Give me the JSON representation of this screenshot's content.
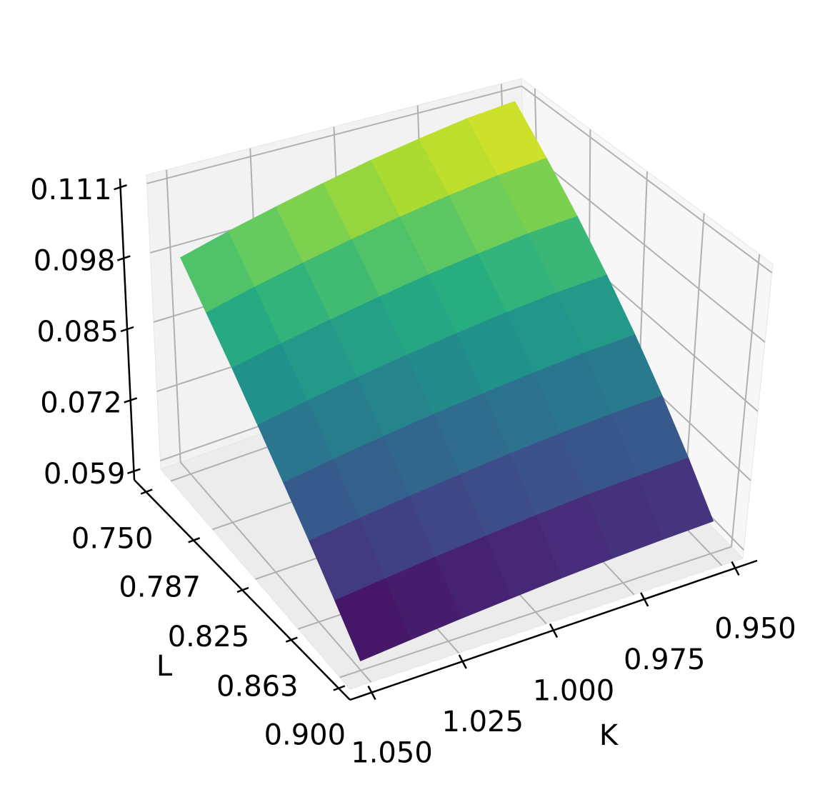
{
  "chart_data": {
    "type": "surface",
    "x_label": "K",
    "y_label": "L",
    "x": [
      0.95,
      0.9643,
      0.9786,
      0.9929,
      1.0071,
      1.0214,
      1.0357,
      1.05
    ],
    "y": [
      0.75,
      0.7714,
      0.7929,
      0.8143,
      0.8357,
      0.8571,
      0.8786,
      0.9
    ],
    "z": [
      [
        0.111,
        0.11,
        0.1084,
        0.1067,
        0.1047,
        0.1026,
        0.1004,
        0.098
      ],
      [
        0.1042,
        0.1033,
        0.1019,
        0.1003,
        0.0985,
        0.0966,
        0.0946,
        0.0924
      ],
      [
        0.0974,
        0.0966,
        0.0953,
        0.0939,
        0.0923,
        0.0906,
        0.0888,
        0.0869
      ],
      [
        0.0906,
        0.0899,
        0.0888,
        0.0875,
        0.0861,
        0.0846,
        0.083,
        0.0813
      ],
      [
        0.0839,
        0.0832,
        0.0822,
        0.0811,
        0.0799,
        0.0786,
        0.0772,
        0.0757
      ],
      [
        0.0771,
        0.0765,
        0.0757,
        0.0748,
        0.0737,
        0.0726,
        0.0714,
        0.0702
      ],
      [
        0.0703,
        0.0698,
        0.0692,
        0.0684,
        0.0675,
        0.0666,
        0.0656,
        0.0646
      ],
      [
        0.0635,
        0.0631,
        0.0626,
        0.062,
        0.0613,
        0.0606,
        0.0598,
        0.059
      ]
    ],
    "colormap": "viridis",
    "xlim": [
      0.944,
      1.056
    ],
    "ylim": [
      0.741,
      0.909
    ],
    "zlim": [
      0.0574,
      0.1126
    ],
    "xticks": [
      {
        "value": 0.95,
        "label": "0.950"
      },
      {
        "value": 0.975,
        "label": "0.975"
      },
      {
        "value": 1.0,
        "label": "1.000"
      },
      {
        "value": 1.025,
        "label": "1.025"
      },
      {
        "value": 1.05,
        "label": "1.050"
      }
    ],
    "yticks": [
      {
        "value": 0.75,
        "label": "0.750"
      },
      0.787,
      0.825,
      0.863,
      {
        "value": 0.9,
        "label": "0.900"
      }
    ],
    "zticks": [
      0.059,
      0.072,
      0.085,
      0.098,
      0.111
    ],
    "grid": true
  }
}
